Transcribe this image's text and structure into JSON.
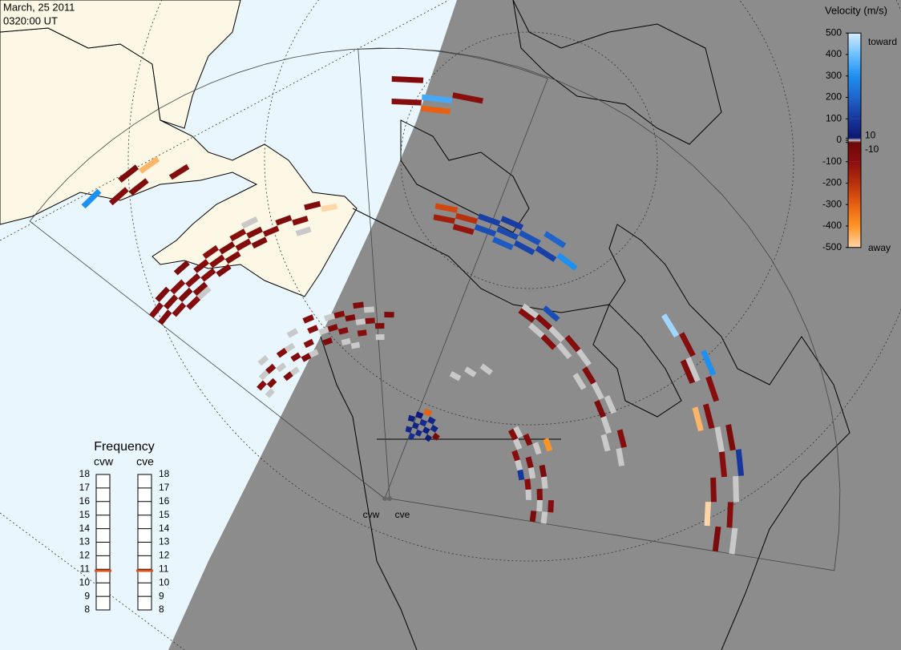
{
  "header": {
    "date": "March, 25 2011",
    "time": "0320:00 UT"
  },
  "velocity_scale": {
    "title": "Velocity (m/s)",
    "toward": "toward",
    "away": "away",
    "ticks": [
      500,
      400,
      300,
      200,
      100,
      10,
      0,
      -10,
      -100,
      -200,
      -300,
      -400,
      -500
    ],
    "colors": [
      "#d6ecff",
      "#6cc0ff",
      "#1e90f0",
      "#1f64cc",
      "#17379c",
      "#0b1670",
      "#c4c4c4",
      "#6e0808",
      "#8b0e0e",
      "#b8300c",
      "#e86010",
      "#ff9426",
      "#ffd6a8"
    ]
  },
  "ground_scatter_color": "#c9c9c9",
  "frequency_panel": {
    "title": "Frequency",
    "ticks": [
      18,
      17,
      16,
      15,
      14,
      13,
      12,
      11,
      10,
      9,
      8
    ],
    "indicator_color": "#e0501a"
  },
  "radars": [
    {
      "name": "cvw",
      "frequency": 10.9,
      "echoes": [
        [
          0,
          46,
          -60
        ],
        [
          0,
          48,
          -80
        ],
        [
          1,
          45,
          -90
        ],
        [
          1,
          47,
          -70
        ],
        [
          1,
          49,
          -60
        ],
        [
          2,
          44,
          -80
        ],
        [
          2,
          46,
          -60
        ],
        [
          2,
          48,
          -90
        ],
        [
          3,
          45,
          -70
        ],
        [
          3,
          47,
          -80
        ],
        [
          3,
          50,
          -60
        ],
        [
          4,
          46,
          -90
        ],
        [
          4,
          48,
          -70
        ],
        [
          5,
          45,
          -60
        ],
        [
          5,
          47,
          -80
        ],
        [
          5,
          49,
          -100
        ],
        [
          6,
          46,
          -70
        ],
        [
          6,
          48,
          -60
        ],
        [
          7,
          47,
          -80
        ],
        [
          7,
          49,
          -90
        ],
        [
          8,
          46,
          -60
        ],
        [
          8,
          48,
          -70
        ],
        [
          9,
          47,
          -80
        ],
        [
          10,
          48,
          -60
        ],
        [
          11,
          47,
          -90
        ],
        [
          12,
          49,
          -70
        ],
        [
          13,
          48,
          -500
        ],
        [
          3,
          67,
          -80
        ],
        [
          4,
          66,
          -70
        ],
        [
          4,
          69,
          -60
        ],
        [
          5,
          68,
          -450
        ],
        [
          2,
          70,
          300
        ],
        [
          6,
          64,
          -80
        ],
        [
          1,
          25,
          -80
        ],
        [
          2,
          24,
          -70
        ],
        [
          3,
          26,
          -90
        ],
        [
          4,
          23,
          -60
        ],
        [
          5,
          27,
          -80
        ],
        [
          6,
          25,
          -70
        ],
        [
          7,
          24,
          -60
        ],
        [
          8,
          26,
          -80
        ],
        [
          9,
          28,
          -90
        ],
        [
          10,
          25,
          -60
        ],
        [
          11,
          27,
          -70
        ],
        [
          12,
          26,
          -80
        ],
        [
          13,
          28,
          -60
        ],
        [
          14,
          25,
          -90
        ],
        [
          15,
          27,
          -80
        ],
        [
          16,
          26,
          -70
        ],
        [
          17,
          28,
          -60
        ],
        [
          9,
          30,
          -80
        ],
        [
          12,
          29,
          -70
        ],
        [
          14,
          30,
          -60
        ]
      ],
      "ground_scatter": [
        [
          2,
          26
        ],
        [
          4,
          25
        ],
        [
          6,
          27
        ],
        [
          8,
          24
        ],
        [
          10,
          27
        ],
        [
          12,
          24
        ],
        [
          14,
          27
        ],
        [
          16,
          24
        ],
        [
          3,
          28
        ],
        [
          7,
          29
        ],
        [
          11,
          29
        ],
        [
          15,
          29
        ],
        [
          3,
          44
        ],
        [
          8,
          50
        ],
        [
          11,
          45
        ],
        [
          1,
          23
        ],
        [
          5,
          23
        ],
        [
          13,
          23
        ]
      ]
    },
    {
      "name": "cve",
      "frequency": 10.9,
      "echoes": [
        [
          4,
          8,
          60
        ],
        [
          4,
          10,
          40
        ],
        [
          5,
          7,
          80
        ],
        [
          5,
          9,
          50
        ],
        [
          5,
          11,
          30
        ],
        [
          6,
          8,
          60
        ],
        [
          6,
          10,
          70
        ],
        [
          7,
          9,
          40
        ],
        [
          7,
          11,
          50
        ],
        [
          8,
          8,
          30
        ],
        [
          8,
          10,
          60
        ],
        [
          9,
          9,
          -40
        ],
        [
          6,
          12,
          -300
        ],
        [
          5,
          46,
          150
        ],
        [
          5,
          48,
          120
        ],
        [
          6,
          45,
          180
        ],
        [
          6,
          47,
          140
        ],
        [
          6,
          49,
          110
        ],
        [
          7,
          46,
          130
        ],
        [
          7,
          48,
          160
        ],
        [
          8,
          47,
          120
        ],
        [
          8,
          50,
          200
        ],
        [
          3,
          46,
          -150
        ],
        [
          3,
          48,
          -250
        ],
        [
          4,
          45,
          -120
        ],
        [
          4,
          47,
          -200
        ],
        [
          9,
          48,
          300
        ],
        [
          1,
          66,
          -80
        ],
        [
          2,
          65,
          -300
        ],
        [
          2,
          67,
          350
        ],
        [
          3,
          68,
          -90
        ],
        [
          1,
          70,
          -70
        ],
        [
          9,
          36,
          -80
        ],
        [
          10,
          37,
          -70
        ],
        [
          11,
          35,
          -90
        ],
        [
          12,
          38,
          -80
        ],
        [
          14,
          37,
          -70
        ],
        [
          16,
          36,
          -60
        ],
        [
          18,
          38,
          -80
        ],
        [
          10,
          39,
          150
        ],
        [
          15,
          20,
          -80
        ],
        [
          16,
          22,
          -70
        ],
        [
          17,
          19,
          -90
        ],
        [
          18,
          21,
          -80
        ],
        [
          19,
          23,
          -60
        ],
        [
          20,
          20,
          -90
        ],
        [
          21,
          22,
          -70
        ],
        [
          22,
          24,
          -80
        ],
        [
          23,
          21,
          -60
        ],
        [
          19,
          19,
          100
        ],
        [
          17,
          25,
          -400
        ],
        [
          15,
          55,
          -80
        ],
        [
          16,
          53,
          -70
        ],
        [
          17,
          56,
          -90
        ],
        [
          18,
          54,
          -80
        ],
        [
          19,
          57,
          -60
        ],
        [
          20,
          55,
          -90
        ],
        [
          21,
          53,
          -70
        ],
        [
          22,
          56,
          -80
        ],
        [
          23,
          54,
          -60
        ],
        [
          16,
          57,
          300
        ],
        [
          18,
          52,
          -450
        ],
        [
          20,
          58,
          100
        ],
        [
          14,
          54,
          450
        ],
        [
          22,
          52,
          -500
        ]
      ],
      "ground_scatter": [
        [
          9,
          37
        ],
        [
          10,
          35
        ],
        [
          11,
          37
        ],
        [
          12,
          36
        ],
        [
          13,
          38
        ],
        [
          14,
          35
        ],
        [
          15,
          37
        ],
        [
          16,
          38
        ],
        [
          17,
          36
        ],
        [
          18,
          35
        ],
        [
          19,
          37
        ],
        [
          15,
          21
        ],
        [
          16,
          20
        ],
        [
          17,
          23
        ],
        [
          18,
          19
        ],
        [
          19,
          21
        ],
        [
          20,
          23
        ],
        [
          21,
          20
        ],
        [
          22,
          22
        ],
        [
          23,
          23
        ],
        [
          16,
          54
        ],
        [
          19,
          55
        ],
        [
          21,
          57
        ],
        [
          23,
          57
        ],
        [
          7,
          20
        ],
        [
          8,
          22
        ],
        [
          9,
          24
        ]
      ]
    }
  ]
}
